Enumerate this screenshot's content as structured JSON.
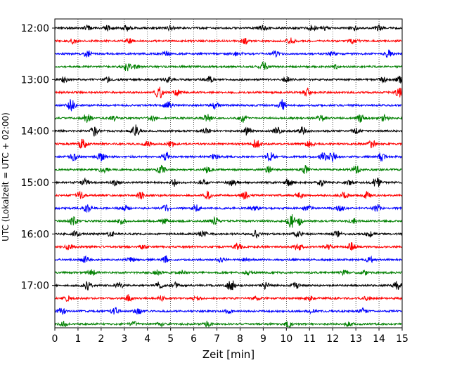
{
  "chart_data": {
    "type": "line",
    "xlabel": "Zeit  [min]",
    "ylabel": "UTC (Lokalzeit = UTC + 02:00)",
    "xlim": [
      0,
      15
    ],
    "x_ticks": [
      "0",
      "1",
      "2",
      "3",
      "4",
      "5",
      "6",
      "7",
      "8",
      "9",
      "10",
      "11",
      "12",
      "13",
      "14",
      "15"
    ],
    "y_ticks": [
      "12:00",
      "13:00",
      "14:00",
      "15:00",
      "16:00",
      "17:00"
    ],
    "grid": "vertical dotted at each minute",
    "trace_minutes_per_line": 15,
    "trace_start": "12:00",
    "trace_count": 24,
    "trace_colors": [
      "#000000",
      "#ff0000",
      "#0000ff",
      "#008000"
    ],
    "traces": [
      {
        "start": "12:00",
        "color": "#000000",
        "events": [
          [
            1.4,
            0.4
          ],
          [
            2.3,
            0.4
          ],
          [
            3.1,
            0.4
          ],
          [
            5.0,
            0.3
          ],
          [
            9.0,
            0.4
          ],
          [
            11.1,
            0.5
          ],
          [
            11.7,
            0.3
          ],
          [
            12.9,
            0.4
          ],
          [
            14.0,
            0.4
          ]
        ]
      },
      {
        "start": "12:15",
        "color": "#ff0000",
        "events": [
          [
            0.8,
            0.4
          ],
          [
            3.2,
            0.4
          ],
          [
            8.2,
            0.4
          ],
          [
            10.2,
            0.4
          ],
          [
            12.9,
            0.4
          ]
        ]
      },
      {
        "start": "12:30",
        "color": "#0000ff",
        "events": [
          [
            1.4,
            0.5
          ],
          [
            4.8,
            0.4
          ],
          [
            7.9,
            0.4
          ],
          [
            9.5,
            0.4
          ],
          [
            12.0,
            0.4
          ],
          [
            14.4,
            0.5
          ]
        ]
      },
      {
        "start": "12:45",
        "color": "#008000",
        "events": [
          [
            3.1,
            0.6
          ],
          [
            3.5,
            0.3
          ],
          [
            9.0,
            0.6
          ],
          [
            12.1,
            0.3
          ]
        ]
      },
      {
        "start": "13:00",
        "color": "#000000",
        "events": [
          [
            0.4,
            0.4
          ],
          [
            2.3,
            0.4
          ],
          [
            4.9,
            0.4
          ],
          [
            6.7,
            0.4
          ],
          [
            10.0,
            0.4
          ],
          [
            14.2,
            0.4
          ],
          [
            14.9,
            0.5
          ]
        ]
      },
      {
        "start": "13:15",
        "color": "#ff0000",
        "events": [
          [
            4.5,
            1.0
          ],
          [
            5.3,
            0.5
          ],
          [
            10.9,
            0.6
          ],
          [
            14.9,
            0.8
          ]
        ]
      },
      {
        "start": "13:30",
        "color": "#0000ff",
        "events": [
          [
            0.7,
            1.0
          ],
          [
            4.9,
            0.7
          ],
          [
            6.9,
            0.5
          ],
          [
            9.8,
            0.9
          ]
        ]
      },
      {
        "start": "13:45",
        "color": "#008000",
        "events": [
          [
            1.4,
            0.6
          ],
          [
            2.5,
            0.4
          ],
          [
            4.2,
            0.5
          ],
          [
            6.6,
            0.6
          ],
          [
            8.1,
            0.6
          ],
          [
            11.5,
            0.5
          ],
          [
            13.2,
            0.6
          ],
          [
            14.2,
            0.6
          ]
        ]
      },
      {
        "start": "14:00",
        "color": "#000000",
        "events": [
          [
            1.7,
            0.8
          ],
          [
            3.5,
            1.0
          ],
          [
            6.5,
            0.4
          ],
          [
            8.3,
            0.6
          ],
          [
            9.6,
            0.7
          ],
          [
            10.7,
            0.6
          ],
          [
            13.0,
            0.4
          ]
        ]
      },
      {
        "start": "14:15",
        "color": "#ff0000",
        "events": [
          [
            1.2,
            0.9
          ],
          [
            4.0,
            0.4
          ],
          [
            5.0,
            0.4
          ],
          [
            8.7,
            0.8
          ],
          [
            11.0,
            0.5
          ],
          [
            13.7,
            0.6
          ]
        ]
      },
      {
        "start": "14:30",
        "color": "#0000ff",
        "events": [
          [
            0.8,
            0.5
          ],
          [
            2.0,
            0.6
          ],
          [
            4.8,
            0.7
          ],
          [
            6.9,
            0.4
          ],
          [
            9.3,
            0.8
          ],
          [
            11.6,
            0.6
          ],
          [
            12.0,
            0.7
          ],
          [
            14.1,
            0.6
          ]
        ]
      },
      {
        "start": "14:45",
        "color": "#008000",
        "events": [
          [
            2.1,
            0.5
          ],
          [
            4.6,
            0.6
          ],
          [
            6.6,
            0.5
          ],
          [
            9.2,
            0.5
          ],
          [
            10.8,
            0.6
          ],
          [
            13.0,
            0.7
          ]
        ]
      },
      {
        "start": "15:00",
        "color": "#000000",
        "events": [
          [
            1.3,
            0.5
          ],
          [
            2.6,
            0.4
          ],
          [
            5.2,
            0.6
          ],
          [
            6.4,
            0.4
          ],
          [
            7.7,
            0.6
          ],
          [
            10.1,
            0.6
          ],
          [
            11.5,
            0.4
          ],
          [
            12.7,
            0.4
          ],
          [
            13.9,
            0.8
          ]
        ]
      },
      {
        "start": "15:15",
        "color": "#ff0000",
        "events": [
          [
            1.1,
            0.5
          ],
          [
            3.7,
            0.6
          ],
          [
            6.6,
            0.6
          ],
          [
            8.2,
            0.6
          ],
          [
            10.6,
            0.5
          ],
          [
            12.5,
            0.5
          ],
          [
            13.5,
            0.5
          ]
        ]
      },
      {
        "start": "15:30",
        "color": "#0000ff",
        "events": [
          [
            1.4,
            0.6
          ],
          [
            3.0,
            0.5
          ],
          [
            4.8,
            0.5
          ],
          [
            6.1,
            0.5
          ],
          [
            8.6,
            0.4
          ],
          [
            10.9,
            0.5
          ],
          [
            12.3,
            0.5
          ],
          [
            13.9,
            0.5
          ]
        ]
      },
      {
        "start": "15:45",
        "color": "#008000",
        "events": [
          [
            0.8,
            0.6
          ],
          [
            2.9,
            0.4
          ],
          [
            4.7,
            0.4
          ],
          [
            6.9,
            0.5
          ],
          [
            10.2,
            1.0
          ],
          [
            10.5,
            0.8
          ],
          [
            12.9,
            0.4
          ]
        ]
      },
      {
        "start": "16:00",
        "color": "#000000",
        "events": [
          [
            0.9,
            0.4
          ],
          [
            2.4,
            0.3
          ],
          [
            6.4,
            0.5
          ],
          [
            8.7,
            0.5
          ],
          [
            10.5,
            0.4
          ],
          [
            12.2,
            0.4
          ],
          [
            13.6,
            0.4
          ]
        ]
      },
      {
        "start": "16:15",
        "color": "#ff0000",
        "events": [
          [
            0.6,
            0.4
          ],
          [
            3.8,
            0.3
          ],
          [
            7.9,
            0.5
          ],
          [
            10.5,
            0.6
          ],
          [
            11.8,
            0.4
          ],
          [
            12.8,
            0.6
          ]
        ]
      },
      {
        "start": "16:30",
        "color": "#0000ff",
        "events": [
          [
            1.3,
            0.5
          ],
          [
            3.3,
            0.4
          ],
          [
            4.8,
            0.5
          ],
          [
            7.2,
            0.4
          ],
          [
            8.3,
            0.4
          ],
          [
            13.6,
            0.4
          ]
        ]
      },
      {
        "start": "16:45",
        "color": "#008000",
        "events": [
          [
            1.6,
            0.4
          ],
          [
            4.4,
            0.4
          ],
          [
            5.5,
            0.3
          ],
          [
            8.3,
            0.3
          ],
          [
            12.5,
            0.4
          ],
          [
            13.4,
            0.3
          ]
        ]
      },
      {
        "start": "17:00",
        "color": "#000000",
        "events": [
          [
            1.4,
            0.6
          ],
          [
            2.8,
            0.4
          ],
          [
            4.5,
            0.5
          ],
          [
            5.2,
            0.4
          ],
          [
            7.6,
            1.0
          ],
          [
            9.1,
            0.5
          ],
          [
            10.4,
            0.4
          ],
          [
            14.8,
            0.7
          ]
        ]
      },
      {
        "start": "17:15",
        "color": "#ff0000",
        "events": [
          [
            0.5,
            0.4
          ],
          [
            3.2,
            0.5
          ],
          [
            4.6,
            0.4
          ],
          [
            6.1,
            0.3
          ],
          [
            8.7,
            0.3
          ],
          [
            11.0,
            0.4
          ],
          [
            13.5,
            0.3
          ]
        ]
      },
      {
        "start": "17:30",
        "color": "#0000ff",
        "events": [
          [
            0.3,
            0.5
          ],
          [
            2.6,
            0.5
          ],
          [
            3.6,
            0.4
          ],
          [
            7.5,
            0.3
          ],
          [
            11.1,
            0.3
          ],
          [
            13.3,
            0.4
          ]
        ]
      },
      {
        "start": "17:45",
        "color": "#008000",
        "events": [
          [
            0.4,
            0.4
          ],
          [
            3.4,
            0.4
          ],
          [
            4.6,
            0.3
          ],
          [
            6.6,
            0.4
          ],
          [
            10.1,
            0.4
          ],
          [
            12.7,
            0.4
          ]
        ]
      }
    ]
  }
}
